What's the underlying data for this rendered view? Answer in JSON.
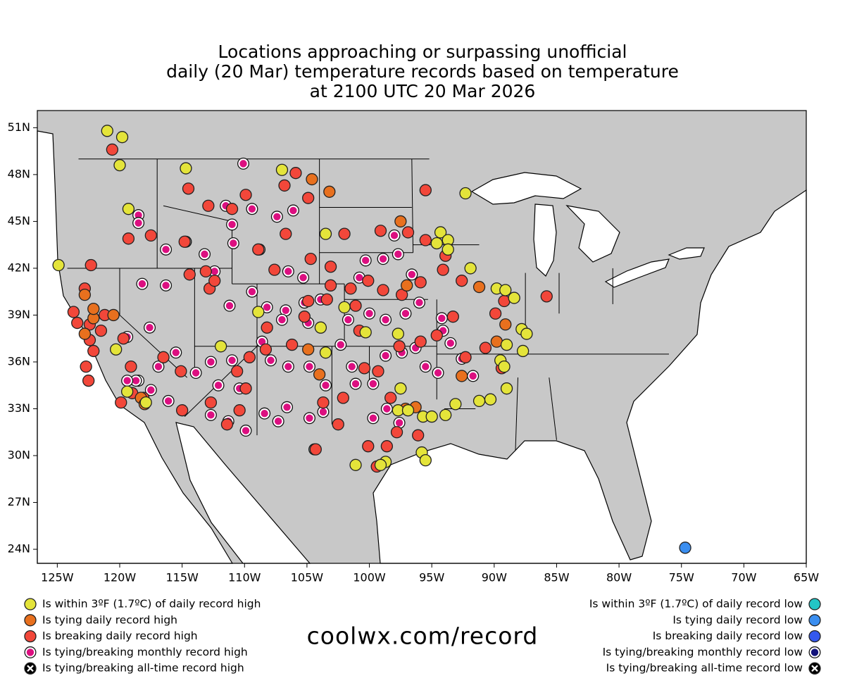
{
  "chart_data": {
    "type": "scatter",
    "title": [
      "Locations approaching or surpassing unofficial",
      "daily (20 Mar) temperature records based on temperature",
      "at 2100 UTC 20 Mar 2026"
    ],
    "source": "coolwx.com/record",
    "xlim": [
      -126.6,
      -65
    ],
    "ylim": [
      23.1,
      52.1
    ],
    "xticks": [
      {
        "value": -125,
        "label": "125W"
      },
      {
        "value": -120,
        "label": "120W"
      },
      {
        "value": -115,
        "label": "115W"
      },
      {
        "value": -110,
        "label": "110W"
      },
      {
        "value": -105,
        "label": "105W"
      },
      {
        "value": -100,
        "label": "100W"
      },
      {
        "value": -95,
        "label": "95W"
      },
      {
        "value": -90,
        "label": "90W"
      },
      {
        "value": -85,
        "label": "85W"
      },
      {
        "value": -80,
        "label": "80W"
      },
      {
        "value": -75,
        "label": "75W"
      },
      {
        "value": -70,
        "label": "70W"
      },
      {
        "value": -65,
        "label": "65W"
      }
    ],
    "yticks": [
      {
        "value": 24,
        "label": "24N"
      },
      {
        "value": 27,
        "label": "27N"
      },
      {
        "value": 30,
        "label": "30N"
      },
      {
        "value": 33,
        "label": "33N"
      },
      {
        "value": 36,
        "label": "36N"
      },
      {
        "value": 39,
        "label": "39N"
      },
      {
        "value": 42,
        "label": "42N"
      },
      {
        "value": 45,
        "label": "45N"
      },
      {
        "value": 48,
        "label": "48N"
      },
      {
        "value": 51,
        "label": "51N"
      }
    ],
    "series": [
      {
        "name": "Is within 3ºF (1.7ºC) of daily record high",
        "color": "#e4e43a",
        "side": "left",
        "lon": [
          -121.0,
          -119.8,
          -120.0,
          -114.7,
          -119.3,
          -124.9,
          -107.0,
          -103.5,
          -92.3,
          -94.3,
          -93.7,
          -94.6,
          -93.7,
          -91.9,
          -89.8,
          -89.1,
          -88.4,
          -87.8,
          -87.4,
          -87.7,
          -89.5,
          -89.2,
          -89.0,
          -89.0,
          -90.3,
          -91.2,
          -93.1,
          -95.7,
          -95.0,
          -93.9,
          -97.5,
          -97.7,
          -96.9,
          -95.8,
          -95.5,
          -98.7,
          -99.1,
          -101.1,
          -102.0,
          -103.9,
          -103.5,
          -100.3,
          -111.9,
          -108.9,
          -120.3,
          -119.4,
          -117.9,
          -97.7
        ],
        "lat": [
          50.8,
          50.4,
          48.6,
          48.4,
          45.8,
          42.2,
          48.3,
          44.2,
          46.8,
          44.3,
          43.8,
          43.6,
          43.2,
          42.0,
          40.7,
          40.6,
          40.1,
          38.1,
          37.8,
          36.7,
          36.1,
          35.7,
          34.3,
          37.1,
          33.6,
          33.5,
          33.3,
          32.5,
          32.5,
          32.6,
          34.3,
          32.9,
          32.9,
          30.2,
          29.7,
          29.6,
          29.4,
          29.4,
          39.5,
          38.2,
          36.6,
          37.9,
          37.0,
          39.2,
          36.8,
          34.1,
          33.4,
          37.8
        ]
      },
      {
        "name": "Is tying daily record high",
        "color": "#e8701e",
        "side": "left",
        "lon": [
          -104.6,
          -103.2,
          -97.5,
          -97.0,
          -91.2,
          -89.1,
          -89.8,
          -92.6,
          -104.0,
          -104.9,
          -97.1,
          -96.3,
          -120.5,
          -122.1,
          -122.1,
          -122.8,
          -118.3,
          -118.0,
          -122.8
        ],
        "lat": [
          47.7,
          46.9,
          45.0,
          40.9,
          40.8,
          38.4,
          37.3,
          35.1,
          35.2,
          36.8,
          33.0,
          33.1,
          39.0,
          38.8,
          39.4,
          37.8,
          33.7,
          33.3,
          40.3
        ]
      },
      {
        "name": "Is breaking daily record high",
        "color": "#f2473a",
        "side": "left",
        "lon": [
          -122.3,
          -122.8,
          -123.7,
          -123.4,
          -122.4,
          -121.5,
          -122.4,
          -122.1,
          -122.7,
          -122.5,
          -121.2,
          -119.7,
          -119.0,
          -118.1,
          -119.9,
          -115.0,
          -112.7,
          -111.4,
          -110.4,
          -109.9,
          -109.6,
          -108.2,
          -108.3,
          -106.2,
          -105.2,
          -104.9,
          -103.4,
          -103.1,
          -101.1,
          -100.8,
          -100.4,
          -98.3,
          -97.8,
          -96.1,
          -98.6,
          -100.1,
          -102.5,
          -103.7,
          -102.1,
          -99.3,
          -97.6,
          -95.9,
          -94.6,
          -93.3,
          -92.3,
          -90.7,
          -89.4,
          -89.2,
          -89.9,
          -85.8,
          -94.1,
          -92.6,
          -95.9,
          -97.4,
          -98.9,
          -100.1,
          -101.5,
          -103.1,
          -104.7,
          -102.0,
          -99.1,
          -96.9,
          -95.5,
          -93.9,
          -95.5,
          -107.6,
          -112.8,
          -112.4,
          -114.4,
          -115.1,
          -116.5,
          -119.1,
          -119.3,
          -117.5,
          -114.8,
          -113.1,
          -114.5,
          -112.9,
          -109.9,
          -106.8,
          -105.9,
          -104.9,
          -120.6,
          -111.0,
          -108.9,
          -106.7,
          -110.6,
          -104.3,
          -99.4
        ],
        "lat": [
          42.2,
          40.7,
          39.2,
          38.5,
          38.4,
          38.0,
          37.4,
          36.7,
          35.7,
          34.8,
          39.0,
          37.5,
          34.0,
          33.7,
          33.4,
          32.9,
          33.4,
          32.0,
          32.9,
          34.3,
          36.3,
          38.2,
          36.8,
          37.1,
          38.9,
          39.9,
          40.0,
          40.9,
          39.6,
          38.0,
          35.6,
          33.7,
          31.5,
          31.3,
          30.6,
          30.6,
          32.0,
          33.4,
          33.7,
          35.4,
          37.0,
          37.3,
          37.7,
          38.9,
          36.3,
          36.9,
          35.6,
          39.9,
          39.1,
          40.2,
          41.9,
          41.2,
          41.1,
          40.3,
          40.6,
          41.2,
          40.7,
          42.1,
          42.6,
          44.2,
          44.4,
          44.3,
          43.8,
          42.8,
          47.0,
          41.9,
          40.7,
          41.2,
          41.6,
          35.4,
          36.3,
          35.7,
          43.9,
          44.1,
          43.7,
          41.8,
          47.1,
          46.0,
          46.7,
          47.3,
          48.1,
          46.5,
          49.6,
          45.8,
          43.2,
          44.2,
          35.4,
          30.4,
          29.3
        ]
      },
      {
        "name": "Is tying/breaking monthly record high",
        "color": "#dc0f80",
        "ring": true,
        "side": "left",
        "lon": [
          -118.5,
          -118.5,
          -116.3,
          -114.7,
          -113.2,
          -112.4,
          -111.0,
          -110.9,
          -111.5,
          -109.4,
          -108.8,
          -107.4,
          -106.1,
          -106.5,
          -105.3,
          -111.2,
          -109.4,
          -108.2,
          -106.7,
          -105.2,
          -104.9,
          -107.0,
          -108.6,
          -107.9,
          -106.5,
          -104.8,
          -103.5,
          -111.0,
          -112.7,
          -113.9,
          -112.1,
          -110.4,
          -112.7,
          -111.3,
          -109.9,
          -108.4,
          -107.3,
          -106.6,
          -104.8,
          -103.7,
          -104.4,
          -116.1,
          -117.5,
          -118.5,
          -116.9,
          -115.5,
          -117.6,
          -118.2,
          -116.3,
          -119.4,
          -118.7,
          -119.4,
          -101.1,
          -99.7,
          -98.7,
          -97.4,
          -96.3,
          -95.5,
          -94.5,
          -93.5,
          -94.2,
          -96.0,
          -97.1,
          -98.7,
          -100.0,
          -101.7,
          -102.3,
          -101.4,
          -98.9,
          -97.7,
          -96.6,
          -100.3,
          -100.8,
          -98.0,
          -103.9,
          -94.1,
          -92.6,
          -91.7,
          -98.6,
          -99.7,
          -97.6,
          -110.1
        ],
        "lat": [
          45.4,
          44.9,
          43.2,
          43.7,
          42.9,
          41.8,
          44.8,
          43.6,
          46.0,
          45.8,
          43.2,
          45.3,
          45.7,
          41.8,
          41.4,
          39.6,
          40.5,
          39.5,
          39.3,
          39.8,
          38.5,
          38.7,
          37.3,
          36.1,
          35.7,
          35.7,
          34.5,
          36.1,
          36.0,
          35.3,
          34.5,
          34.3,
          32.6,
          32.2,
          31.6,
          32.7,
          32.2,
          33.1,
          32.4,
          32.8,
          30.4,
          33.5,
          34.2,
          34.8,
          35.7,
          36.6,
          38.2,
          41.0,
          40.9,
          37.6,
          34.8,
          34.8,
          34.6,
          34.6,
          36.4,
          36.6,
          36.9,
          35.7,
          35.3,
          37.2,
          38.8,
          39.8,
          39.1,
          38.7,
          39.1,
          38.7,
          37.1,
          35.7,
          42.6,
          42.9,
          41.6,
          42.5,
          41.4,
          44.1,
          40.0,
          38.0,
          36.2,
          35.1,
          33.0,
          32.4,
          32.1,
          48.7
        ]
      },
      {
        "name": "Is tying/breaking all-time record high",
        "color": "#000000",
        "marker": "cross",
        "side": "left",
        "lon": [],
        "lat": []
      },
      {
        "name": "Is within 3ºF (1.7ºC) of daily record low",
        "color": "#22c6c6",
        "side": "right",
        "lon": [],
        "lat": []
      },
      {
        "name": "Is tying daily record low",
        "color": "#3a8ef0",
        "side": "right",
        "lon": [
          -74.7
        ],
        "lat": [
          24.1
        ]
      },
      {
        "name": "Is breaking daily record low",
        "color": "#3458ee",
        "side": "right",
        "lon": [],
        "lat": []
      },
      {
        "name": "Is tying/breaking monthly record low",
        "color": "#12127a",
        "ring": true,
        "side": "right",
        "lon": [],
        "lat": []
      },
      {
        "name": "Is tying/breaking all-time record low",
        "color": "#000000",
        "marker": "cross",
        "side": "right",
        "lon": [],
        "lat": []
      }
    ]
  }
}
